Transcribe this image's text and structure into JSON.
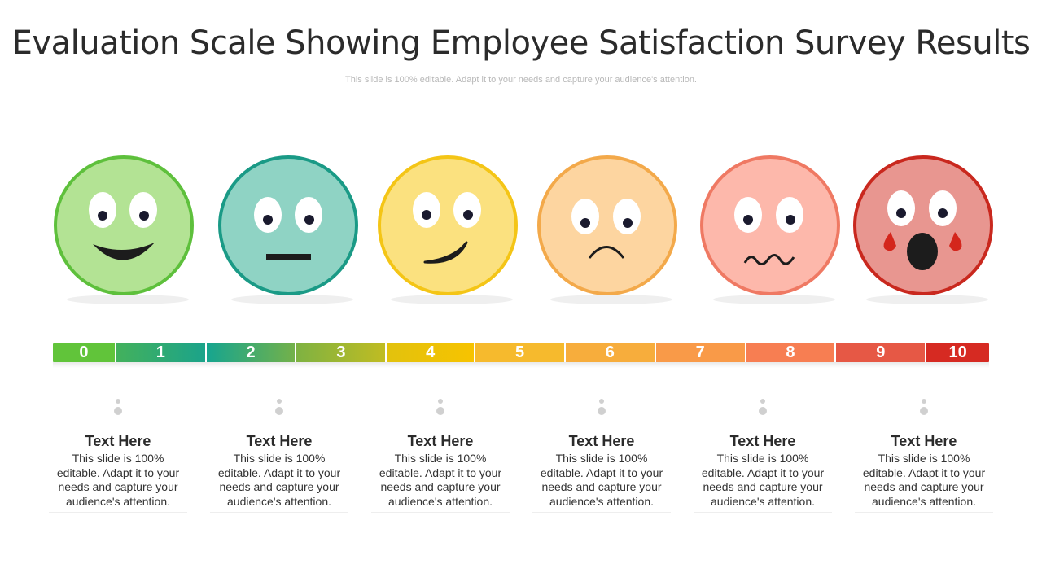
{
  "title": "Evaluation Scale Showing Employee Satisfaction Survey Results",
  "subtitle": "This slide is 100% editable. Adapt it to your needs and capture your audience's attention.",
  "faces": [
    {
      "name": "happy-face-icon",
      "fill": "#b3e394",
      "stroke": "#5ec03c"
    },
    {
      "name": "neutral-face-icon",
      "fill": "#8fd3c4",
      "stroke": "#1a9a86"
    },
    {
      "name": "smirk-face-icon",
      "fill": "#fbe17f",
      "stroke": "#f4c516"
    },
    {
      "name": "sad-face-icon",
      "fill": "#fdd5a0",
      "stroke": "#f3a94a"
    },
    {
      "name": "worried-face-icon",
      "fill": "#fdb8ab",
      "stroke": "#ef7963"
    },
    {
      "name": "shocked-face-icon",
      "fill": "#e89690",
      "stroke": "#c9281e"
    }
  ],
  "scale": [
    {
      "label": "0",
      "color": "#61c43a"
    },
    {
      "label": "1",
      "color": "#2ea97a"
    },
    {
      "label": "2",
      "color": "#1ba38a"
    },
    {
      "label": "3",
      "color": "#8ab33e"
    },
    {
      "label": "4",
      "color": "#f3c514"
    },
    {
      "label": "5",
      "color": "#f5b935"
    },
    {
      "label": "6",
      "color": "#f6ad40"
    },
    {
      "label": "7",
      "color": "#f89a4a"
    },
    {
      "label": "8",
      "color": "#f57e53"
    },
    {
      "label": "9",
      "color": "#e65845"
    },
    {
      "label": "10",
      "color": "#d62a22"
    }
  ],
  "columns": [
    {
      "heading": "Text Here",
      "text": "This slide is 100% editable. Adapt it to your needs and capture your audience's attention."
    },
    {
      "heading": "Text Here",
      "text": "This slide is 100% editable. Adapt it to your needs and capture your audience's attention."
    },
    {
      "heading": "Text Here",
      "text": "This slide is 100% editable. Adapt it to your needs and capture your audience's attention."
    },
    {
      "heading": "Text Here",
      "text": "This slide is 100% editable. Adapt it to your needs and capture your audience's attention."
    },
    {
      "heading": "Text Here",
      "text": "This slide is 100% editable. Adapt it to your needs and capture your audience's attention."
    },
    {
      "heading": "Text Here",
      "text": "This slide is 100% editable. Adapt it to your needs and capture your audience's attention."
    }
  ]
}
